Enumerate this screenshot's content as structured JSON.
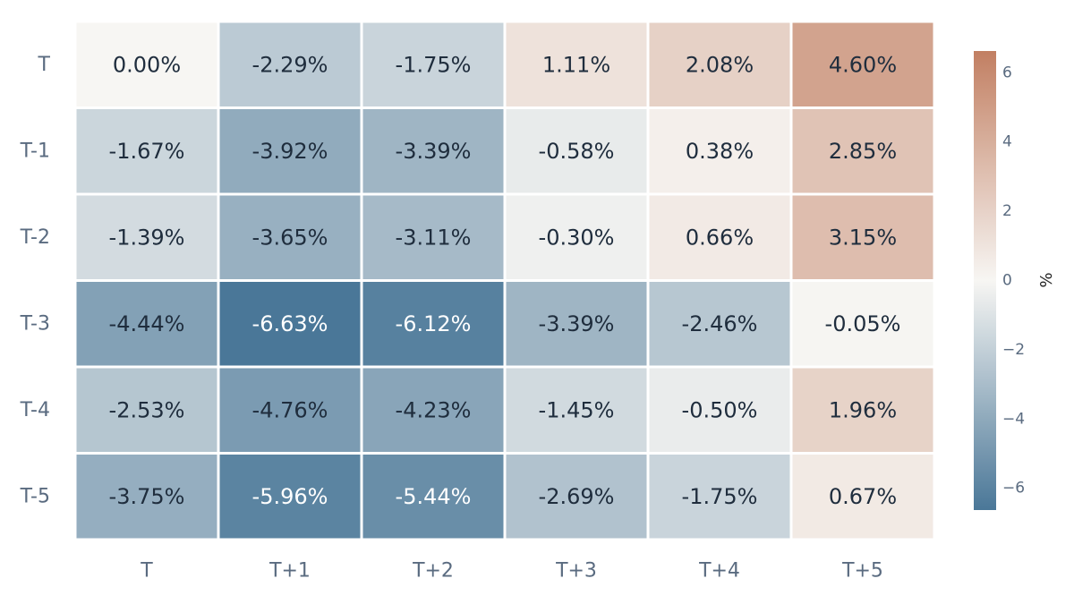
{
  "chart_data": {
    "type": "heatmap",
    "title": "",
    "xlabel": "",
    "ylabel": "",
    "x_categories": [
      "T",
      "T+1",
      "T+2",
      "T+3",
      "T+4",
      "T+5"
    ],
    "y_categories": [
      "T",
      "T-1",
      "T-2",
      "T-3",
      "T-4",
      "T-5"
    ],
    "values": [
      [
        0.0,
        -2.29,
        -1.75,
        1.11,
        2.08,
        4.6
      ],
      [
        -1.67,
        -3.92,
        -3.39,
        -0.58,
        0.38,
        2.85
      ],
      [
        -1.39,
        -3.65,
        -3.11,
        -0.3,
        0.66,
        3.15
      ],
      [
        -4.44,
        -6.63,
        -6.12,
        -3.39,
        -2.46,
        -0.05
      ],
      [
        -2.53,
        -4.76,
        -4.23,
        -1.45,
        -0.5,
        1.96
      ],
      [
        -3.75,
        -5.96,
        -5.44,
        -2.69,
        -1.75,
        0.67
      ]
    ],
    "cell_labels": [
      [
        "0.00%",
        "-2.29%",
        "-1.75%",
        "1.11%",
        "2.08%",
        "4.60%"
      ],
      [
        "-1.67%",
        "-3.92%",
        "-3.39%",
        "-0.58%",
        "0.38%",
        "2.85%"
      ],
      [
        "-1.39%",
        "-3.65%",
        "-3.11%",
        "-0.30%",
        "0.66%",
        "3.15%"
      ],
      [
        "-4.44%",
        "-6.63%",
        "-6.12%",
        "-3.39%",
        "-2.46%",
        "-0.05%"
      ],
      [
        "-2.53%",
        "-4.76%",
        "-4.23%",
        "-1.45%",
        "-0.50%",
        "1.96%"
      ],
      [
        "-3.75%",
        "-5.96%",
        "-5.44%",
        "-2.69%",
        "-1.75%",
        "0.67%"
      ]
    ],
    "colorbar": {
      "title": "%",
      "range": [
        -6.63,
        6.63
      ],
      "ticks": [
        6,
        4,
        2,
        0,
        -2,
        -4,
        -6
      ],
      "tick_labels": [
        "6",
        "4",
        "2",
        "0",
        "−2",
        "−4",
        "−6"
      ]
    },
    "colors": {
      "negative": "#4a7798",
      "neutral": "#f7f6f3",
      "positive": "#c27f62",
      "label_dark": "#1f2d3d",
      "label_light": "#ffffff"
    },
    "grid": false,
    "legend": "colorbar-right"
  }
}
